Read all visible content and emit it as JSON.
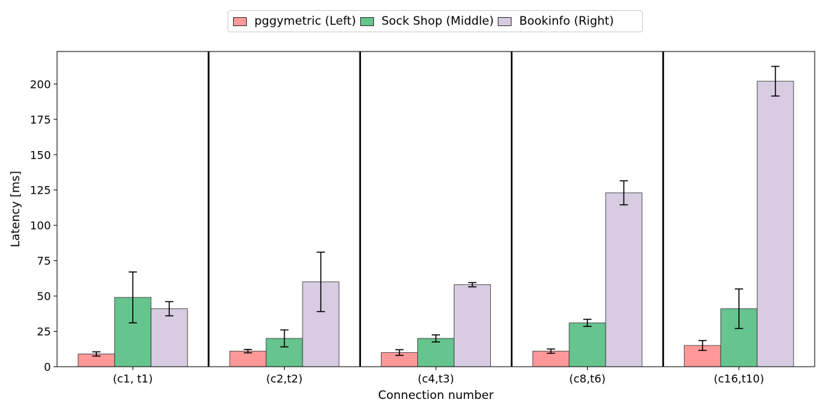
{
  "chart_data": {
    "type": "bar",
    "categories": [
      "(c1, t1)",
      "(c2,t2)",
      "(c4,t3)",
      "(c8,t6)",
      "(c16,t10)"
    ],
    "series": [
      {
        "name": "pggymetric (Left)",
        "color": "#ff9999",
        "values": [
          9,
          11,
          10,
          11,
          15
        ],
        "errors": [
          1.5,
          1.2,
          2.0,
          1.5,
          3.5
        ]
      },
      {
        "name": "Sock Shop (Middle)",
        "color": "#66c48f",
        "values": [
          49,
          20,
          20,
          31,
          41
        ],
        "errors": [
          18,
          6,
          2.5,
          2.5,
          14
        ]
      },
      {
        "name": "Bookinfo (Right)",
        "color": "#d8cce2",
        "values": [
          41,
          60,
          58,
          123,
          202
        ],
        "errors": [
          5,
          21,
          1.5,
          8.5,
          10.5
        ]
      }
    ],
    "xlabel": "Connection number",
    "ylabel": "Latency [ms]",
    "ylim": [
      0,
      223
    ],
    "yticks": [
      0,
      25,
      50,
      75,
      100,
      125,
      150,
      175,
      200
    ],
    "grid": false,
    "legend_position": "top-center",
    "group_separators": true
  }
}
